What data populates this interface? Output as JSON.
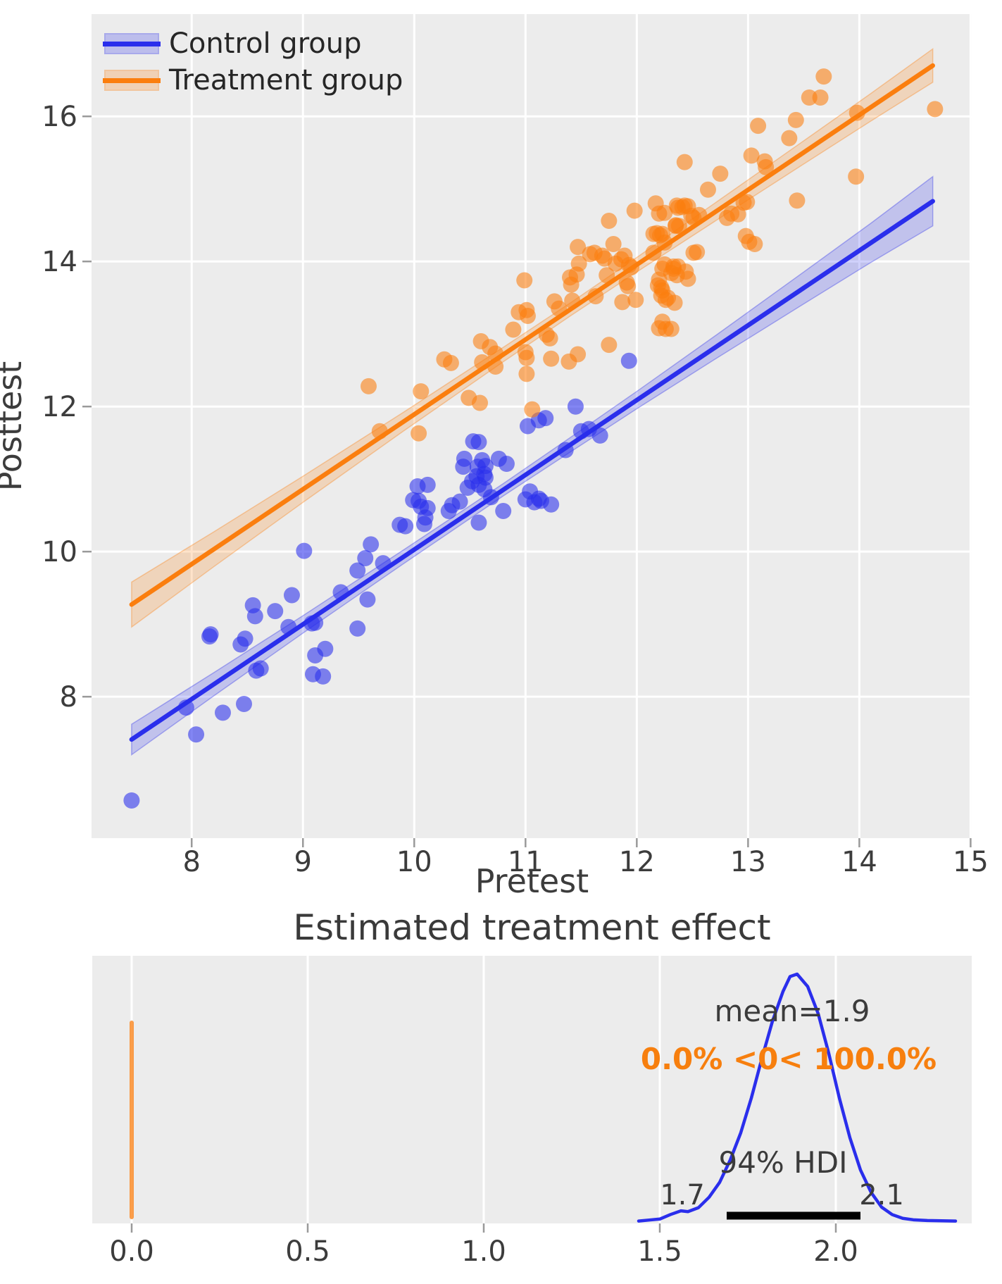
{
  "figure": {
    "background": "#ffffff",
    "axes_background": "#ececec",
    "grid_color": "#ffffff"
  },
  "colors": {
    "control": "#2a2eec",
    "treatment": "#fb7e0e",
    "text_dark": "#3c3c3c",
    "annotation_orange": "#f77f0e",
    "hdi_bar": "#000000",
    "tick_mark": "#9a9a9a"
  },
  "chart_data": [
    {
      "type": "scatter",
      "xlabel": "Pretest",
      "ylabel": "Posttest",
      "xlim": [
        7.1,
        15.01
      ],
      "ylim": [
        6.05,
        17.41
      ],
      "xticks": [
        8,
        9,
        10,
        11,
        12,
        13,
        14,
        15
      ],
      "xtick_labels": [
        "8",
        "9",
        "10",
        "11",
        "12",
        "13",
        "14",
        "15"
      ],
      "yticks": [
        8,
        10,
        12,
        14,
        16
      ],
      "ytick_labels": [
        "8",
        "10",
        "12",
        "14",
        "16"
      ],
      "grid": true,
      "legend": {
        "position": "upper left",
        "entries": [
          {
            "label": "Control group",
            "color": "#2a2eec"
          },
          {
            "label": "Treatment group",
            "color": "#fb7e0e"
          }
        ]
      },
      "series": [
        {
          "name": "Control fit",
          "kind": "fit",
          "color": "#2a2eec",
          "x0": 7.46,
          "y0": 7.41,
          "x1": 14.66,
          "y1": 14.83,
          "band_x": [
            7.46,
            8.2,
            9.0,
            9.9,
            10.8,
            11.4,
            12.0,
            12.7,
            13.5,
            14.1,
            14.66
          ],
          "band_hw": [
            0.21,
            0.16,
            0.12,
            0.095,
            0.085,
            0.1,
            0.12,
            0.16,
            0.22,
            0.27,
            0.34
          ]
        },
        {
          "name": "Treatment fit",
          "kind": "fit",
          "color": "#fb7e0e",
          "x0": 7.46,
          "y0": 9.27,
          "x1": 14.66,
          "y1": 16.7,
          "band_x": [
            7.46,
            8.2,
            9.0,
            9.9,
            10.8,
            11.4,
            12.0,
            12.7,
            13.5,
            14.1,
            14.66
          ],
          "band_hw": [
            0.31,
            0.24,
            0.18,
            0.13,
            0.1,
            0.09,
            0.1,
            0.125,
            0.16,
            0.19,
            0.23
          ]
        },
        {
          "name": "Control group",
          "kind": "scatter",
          "color": "#2a2eec",
          "points": [
            [
              7.46,
              6.57
            ],
            [
              8.17,
              8.86
            ],
            [
              8.44,
              8.72
            ],
            [
              8.48,
              8.8
            ],
            [
              8.55,
              9.26
            ],
            [
              8.57,
              9.11
            ],
            [
              8.75,
              9.18
            ],
            [
              8.87,
              8.96
            ],
            [
              9.11,
              9.02
            ],
            [
              9.11,
              8.57
            ],
            [
              9.2,
              8.66
            ],
            [
              8.28,
              7.78
            ],
            [
              8.47,
              7.9
            ],
            [
              8.04,
              7.48
            ],
            [
              7.95,
              7.85
            ],
            [
              9.49,
              8.94
            ],
            [
              9.09,
              8.31
            ],
            [
              9.18,
              8.28
            ],
            [
              8.58,
              8.36
            ],
            [
              8.62,
              8.39
            ],
            [
              9.01,
              10.01
            ],
            [
              9.61,
              10.1
            ],
            [
              9.56,
              9.91
            ],
            [
              9.72,
              9.84
            ],
            [
              9.49,
              9.74
            ],
            [
              9.58,
              9.34
            ],
            [
              9.34,
              9.44
            ],
            [
              8.9,
              9.4
            ],
            [
              9.08,
              9.01
            ],
            [
              8.16,
              8.83
            ],
            [
              10.06,
              10.62
            ],
            [
              10.12,
              10.6
            ],
            [
              10.1,
              10.47
            ],
            [
              10.61,
              11.26
            ],
            [
              10.52,
              10.97
            ],
            [
              10.48,
              10.88
            ],
            [
              10.63,
              10.86
            ],
            [
              10.45,
              11.28
            ],
            [
              10.44,
              11.17
            ],
            [
              10.53,
              11.52
            ],
            [
              10.58,
              11.51
            ],
            [
              10.57,
              11.17
            ],
            [
              10.64,
              11.18
            ],
            [
              10.56,
              11.04
            ],
            [
              10.63,
              11.07
            ],
            [
              10.58,
              10.92
            ],
            [
              10.64,
              11.02
            ],
            [
              10.76,
              11.28
            ],
            [
              10.83,
              11.21
            ],
            [
              10.69,
              10.75
            ],
            [
              10.8,
              10.56
            ],
            [
              10.03,
              10.9
            ],
            [
              10.12,
              10.92
            ],
            [
              9.99,
              10.71
            ],
            [
              10.04,
              10.7
            ],
            [
              10.34,
              10.64
            ],
            [
              10.41,
              10.69
            ],
            [
              10.31,
              10.56
            ],
            [
              10.58,
              10.4
            ],
            [
              9.87,
              10.37
            ],
            [
              9.92,
              10.35
            ],
            [
              10.09,
              10.38
            ],
            [
              11.02,
              11.73
            ],
            [
              11.12,
              11.81
            ],
            [
              11.18,
              11.84
            ],
            [
              11.04,
              10.83
            ],
            [
              11.0,
              10.72
            ],
            [
              11.12,
              10.73
            ],
            [
              11.14,
              10.7
            ],
            [
              11.08,
              10.68
            ],
            [
              11.23,
              10.65
            ],
            [
              11.36,
              11.4
            ],
            [
              11.45,
              12.0
            ],
            [
              11.5,
              11.66
            ],
            [
              11.57,
              11.69
            ],
            [
              11.67,
              11.6
            ],
            [
              11.93,
              12.63
            ]
          ]
        },
        {
          "name": "Treatment group",
          "kind": "scatter",
          "color": "#fb7e0e",
          "points": [
            [
              9.59,
              12.28
            ],
            [
              9.69,
              11.66
            ],
            [
              10.06,
              12.21
            ],
            [
              10.04,
              11.63
            ],
            [
              10.27,
              12.65
            ],
            [
              10.33,
              12.6
            ],
            [
              10.68,
              12.82
            ],
            [
              10.6,
              12.9
            ],
            [
              10.61,
              12.61
            ],
            [
              10.73,
              12.55
            ],
            [
              10.59,
              12.05
            ],
            [
              10.49,
              12.12
            ],
            [
              10.73,
              12.73
            ],
            [
              10.89,
              13.06
            ],
            [
              11.01,
              13.33
            ],
            [
              11.02,
              13.25
            ],
            [
              10.99,
              13.74
            ],
            [
              10.94,
              13.3
            ],
            [
              11.0,
              12.75
            ],
            [
              11.01,
              12.67
            ],
            [
              11.01,
              12.45
            ],
            [
              11.06,
              11.96
            ],
            [
              11.19,
              12.99
            ],
            [
              11.22,
              12.94
            ],
            [
              11.23,
              12.66
            ],
            [
              11.26,
              13.45
            ],
            [
              11.3,
              13.35
            ],
            [
              11.4,
              13.78
            ],
            [
              11.42,
              13.46
            ],
            [
              11.47,
              14.2
            ],
            [
              11.48,
              13.97
            ],
            [
              11.58,
              14.1
            ],
            [
              11.46,
              13.82
            ],
            [
              11.47,
              12.72
            ],
            [
              11.39,
              12.62
            ],
            [
              11.69,
              14.08
            ],
            [
              11.63,
              13.52
            ],
            [
              11.75,
              12.85
            ],
            [
              11.79,
              14.24
            ],
            [
              11.81,
              13.97
            ],
            [
              11.86,
              14.03
            ],
            [
              11.91,
              13.71
            ],
            [
              11.92,
              13.66
            ],
            [
              11.87,
              13.44
            ],
            [
              11.99,
              13.47
            ],
            [
              12.2,
              13.75
            ],
            [
              12.22,
              13.53
            ],
            [
              12.28,
              13.5
            ],
            [
              12.2,
              13.08
            ],
            [
              12.26,
              13.07
            ],
            [
              12.25,
              13.96
            ],
            [
              12.33,
              13.93
            ],
            [
              12.15,
              14.38
            ],
            [
              12.25,
              14.26
            ],
            [
              11.41,
              13.68
            ],
            [
              11.62,
              14.12
            ],
            [
              11.71,
              14.04
            ],
            [
              11.73,
              13.81
            ],
            [
              11.75,
              14.56
            ],
            [
              11.89,
              14.08
            ],
            [
              11.93,
              13.95
            ],
            [
              11.95,
              13.92
            ],
            [
              11.98,
              14.7
            ],
            [
              12.17,
              14.8
            ],
            [
              12.2,
              14.66
            ],
            [
              12.25,
              14.67
            ],
            [
              12.18,
              14.39
            ],
            [
              12.21,
              14.36
            ],
            [
              12.15,
              14.12
            ],
            [
              12.19,
              13.67
            ],
            [
              12.22,
              13.64
            ],
            [
              12.36,
              14.77
            ],
            [
              12.41,
              14.75
            ],
            [
              12.35,
              14.49
            ],
            [
              12.43,
              15.37
            ],
            [
              12.75,
              15.21
            ],
            [
              12.64,
              14.99
            ],
            [
              13.03,
              15.46
            ],
            [
              13.15,
              15.38
            ],
            [
              13.16,
              15.3
            ],
            [
              12.96,
              14.81
            ],
            [
              12.99,
              14.82
            ],
            [
              12.81,
              14.6
            ],
            [
              12.85,
              14.66
            ],
            [
              12.91,
              14.65
            ],
            [
              12.37,
              14.74
            ],
            [
              12.43,
              14.77
            ],
            [
              12.46,
              14.76
            ],
            [
              12.35,
              14.5
            ],
            [
              12.38,
              14.49
            ],
            [
              12.49,
              14.63
            ],
            [
              12.51,
              14.6
            ],
            [
              12.56,
              14.64
            ],
            [
              12.23,
              14.38
            ],
            [
              12.51,
              14.12
            ],
            [
              12.54,
              14.13
            ],
            [
              12.98,
              14.35
            ],
            [
              13.01,
              14.27
            ],
            [
              13.06,
              14.24
            ],
            [
              13.68,
              16.55
            ],
            [
              13.55,
              16.26
            ],
            [
              13.65,
              16.26
            ],
            [
              13.43,
              15.95
            ],
            [
              13.09,
              15.87
            ],
            [
              13.37,
              15.7
            ],
            [
              14.68,
              16.1
            ],
            [
              13.98,
              16.05
            ],
            [
              13.97,
              15.17
            ],
            [
              13.44,
              14.84
            ],
            [
              12.23,
              13.9
            ],
            [
              12.33,
              13.9
            ],
            [
              12.37,
              13.93
            ],
            [
              12.31,
              13.84
            ],
            [
              12.36,
              13.81
            ],
            [
              12.44,
              13.86
            ],
            [
              12.46,
              13.76
            ],
            [
              12.23,
              13.6
            ],
            [
              12.26,
              13.47
            ],
            [
              12.34,
              13.43
            ],
            [
              12.23,
              13.17
            ],
            [
              12.31,
              13.07
            ]
          ]
        }
      ]
    },
    {
      "type": "kde",
      "title": "Estimated treatment effect",
      "xlim": [
        -0.112,
        2.386
      ],
      "xticks": [
        0.0,
        0.5,
        1.0,
        1.5,
        2.0
      ],
      "xtick_labels": [
        "0.0",
        "0.5",
        "1.0",
        "1.5",
        "2.0"
      ],
      "grid": true,
      "reference_line": {
        "x": 0,
        "color": "#fb7e0e"
      },
      "density": {
        "color": "#2a2eec",
        "points": [
          [
            1.44,
            0.004
          ],
          [
            1.47,
            0.008
          ],
          [
            1.5,
            0.012
          ],
          [
            1.53,
            0.03
          ],
          [
            1.56,
            0.045
          ],
          [
            1.58,
            0.042
          ],
          [
            1.61,
            0.058
          ],
          [
            1.64,
            0.1
          ],
          [
            1.67,
            0.16
          ],
          [
            1.7,
            0.25
          ],
          [
            1.73,
            0.36
          ],
          [
            1.76,
            0.5
          ],
          [
            1.79,
            0.66
          ],
          [
            1.82,
            0.81
          ],
          [
            1.85,
            0.93
          ],
          [
            1.87,
            0.99
          ],
          [
            1.89,
            1.0
          ],
          [
            1.92,
            0.95
          ],
          [
            1.95,
            0.84
          ],
          [
            1.98,
            0.68
          ],
          [
            2.01,
            0.5
          ],
          [
            2.04,
            0.34
          ],
          [
            2.07,
            0.21
          ],
          [
            2.1,
            0.12
          ],
          [
            2.13,
            0.06
          ],
          [
            2.16,
            0.03
          ],
          [
            2.19,
            0.015
          ],
          [
            2.22,
            0.009
          ],
          [
            2.26,
            0.006
          ],
          [
            2.3,
            0.005
          ],
          [
            2.34,
            0.004
          ]
        ]
      },
      "hdi": {
        "low": 1.69,
        "high": 2.07
      },
      "annotations": {
        "mean_text": "mean=1.9",
        "mean_x": 1.876,
        "prob_text": "0.0% <0< 100.0%",
        "prob_x": 1.866,
        "hdi_text": "94% HDI",
        "hdi_x": 1.85,
        "hdi_low_text": "1.7",
        "hdi_low_x": 1.564,
        "hdi_high_text": "2.1",
        "hdi_high_x": 2.13
      }
    }
  ]
}
